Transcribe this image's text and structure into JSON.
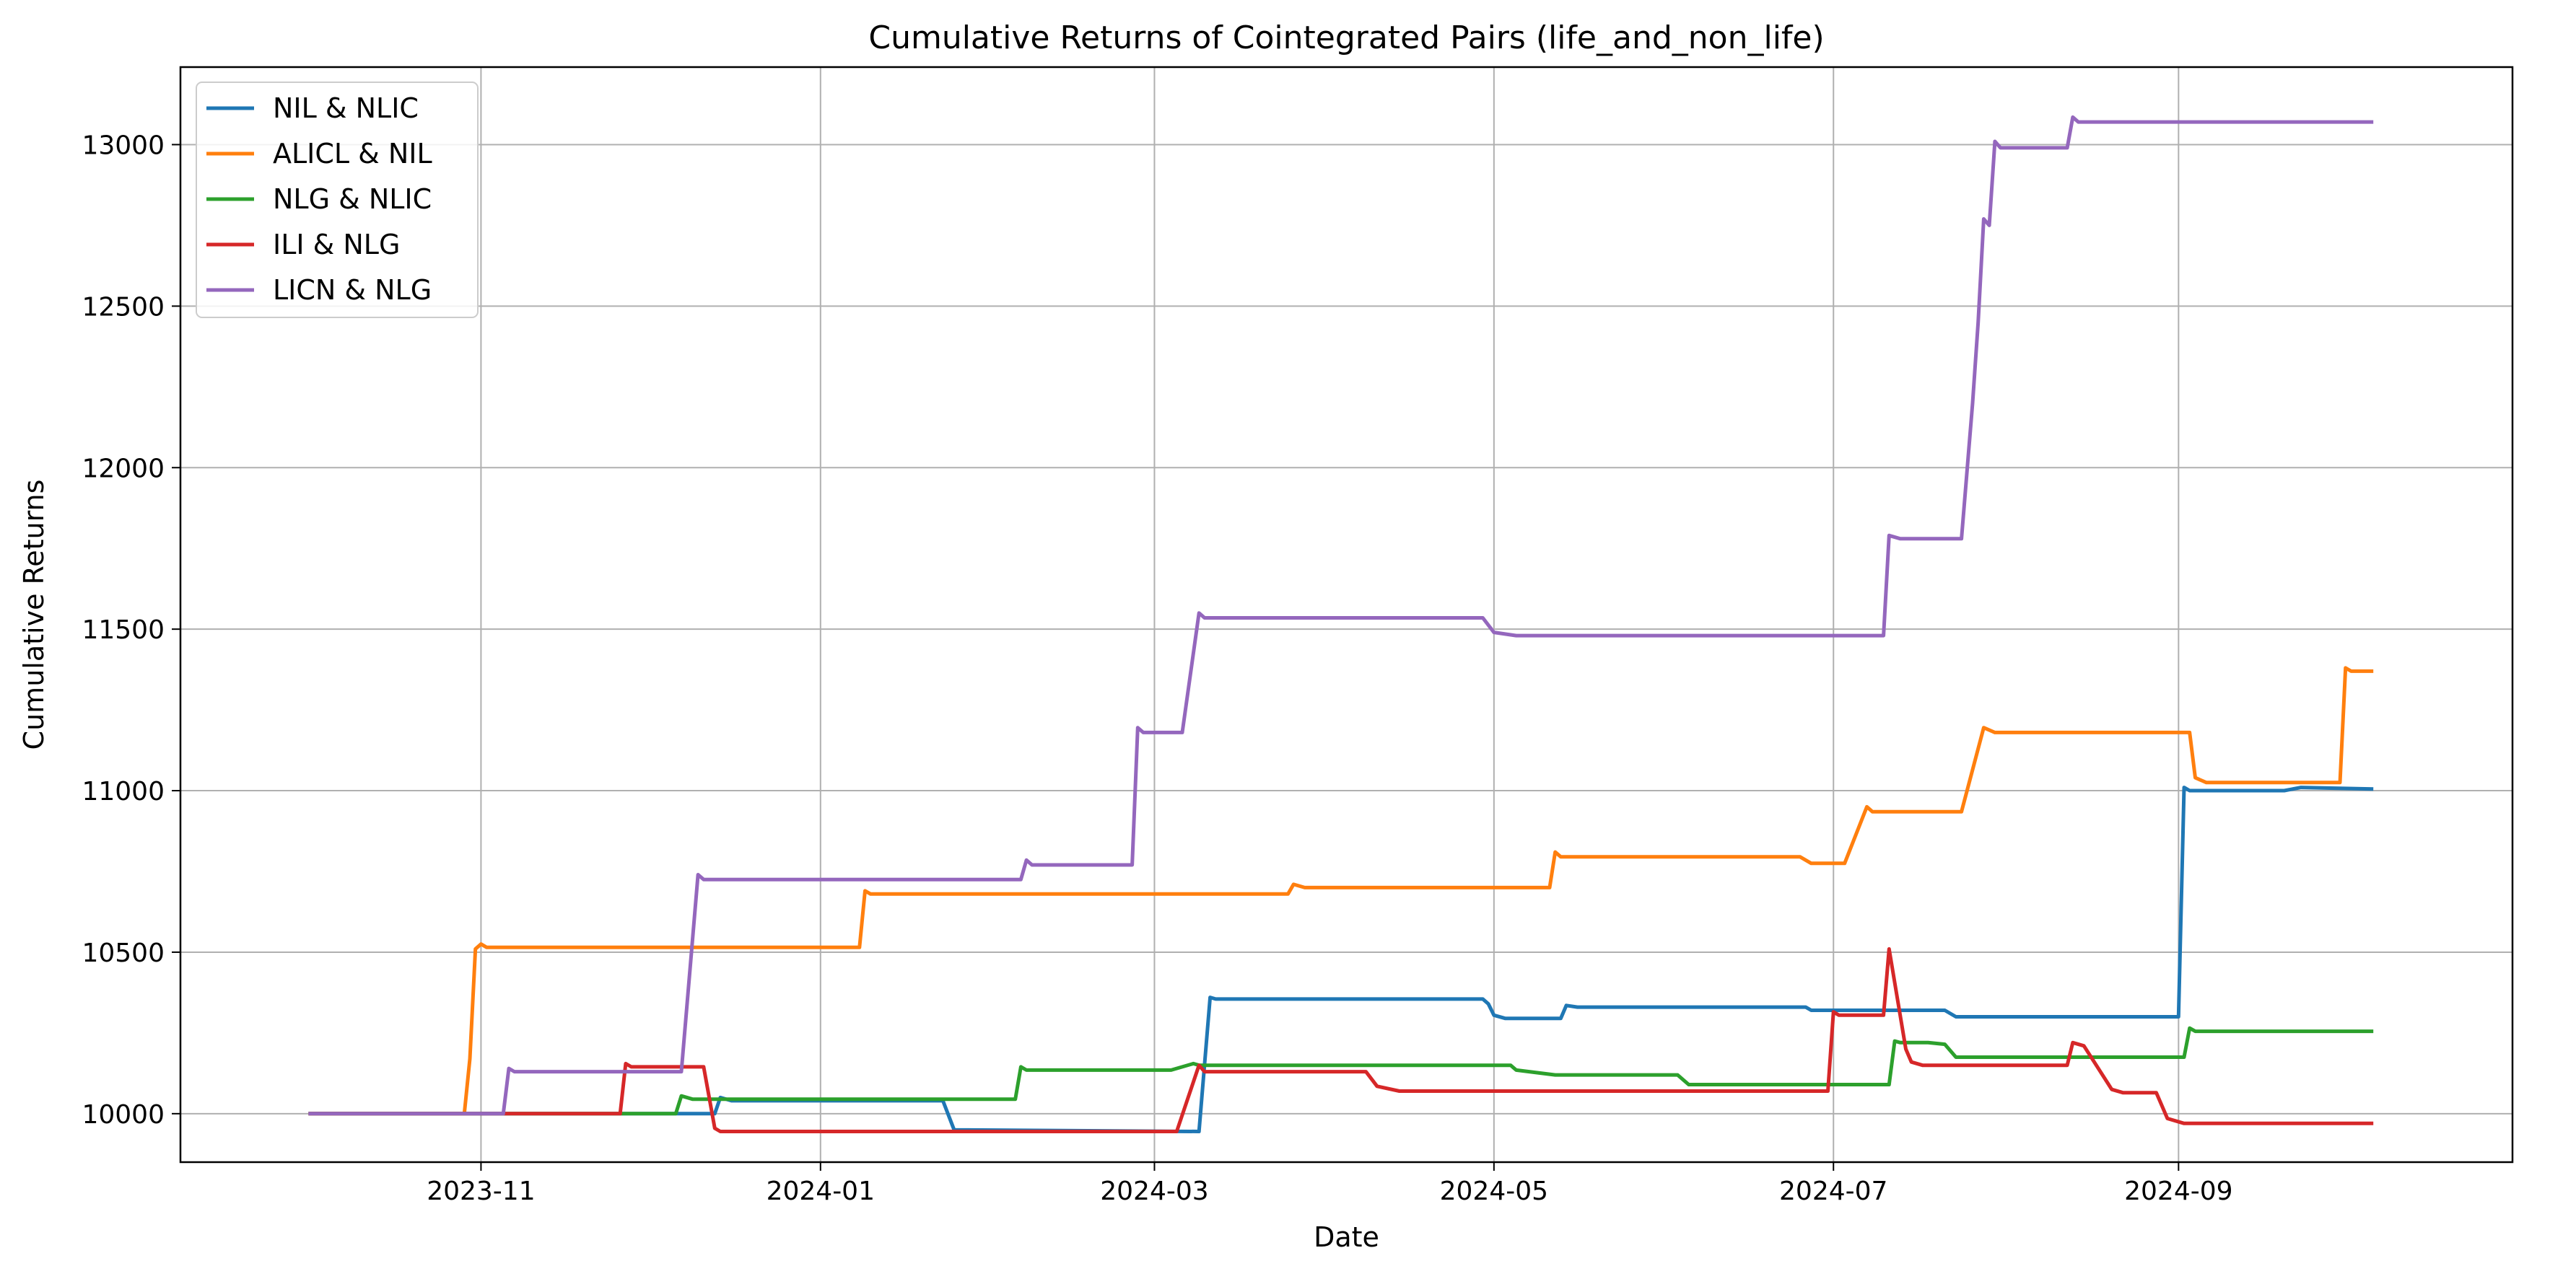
{
  "chart_data": {
    "type": "line",
    "title": "Cumulative Returns of Cointegrated Pairs (life_and_non_life)",
    "xlabel": "Date",
    "ylabel": "Cumulative Returns",
    "x_ticks": [
      "2023-11",
      "2024-01",
      "2024-03",
      "2024-05",
      "2024-07",
      "2024-09"
    ],
    "y_ticks": [
      10000,
      10500,
      11000,
      11500,
      12000,
      12500,
      13000
    ],
    "xlim": [
      "2023-09-08",
      "2024-10-31"
    ],
    "ylim": [
      9850,
      13240
    ],
    "grid": true,
    "legend_position": "upper-left",
    "series": [
      {
        "name": "NIL & NLIC",
        "color": "#1f77b4",
        "points": [
          [
            "2023-10-01",
            10000
          ],
          [
            "2023-12-13",
            10000
          ],
          [
            "2023-12-14",
            10050
          ],
          [
            "2023-12-16",
            10040
          ],
          [
            "2024-01-23",
            10040
          ],
          [
            "2024-01-25",
            9950
          ],
          [
            "2024-03-09",
            9945
          ],
          [
            "2024-03-11",
            10360
          ],
          [
            "2024-03-12",
            10355
          ],
          [
            "2024-04-29",
            10355
          ],
          [
            "2024-04-30",
            10340
          ],
          [
            "2024-05-01",
            10305
          ],
          [
            "2024-05-03",
            10295
          ],
          [
            "2024-05-13",
            10295
          ],
          [
            "2024-05-14",
            10335
          ],
          [
            "2024-05-16",
            10330
          ],
          [
            "2024-06-26",
            10330
          ],
          [
            "2024-06-27",
            10320
          ],
          [
            "2024-07-21",
            10320
          ],
          [
            "2024-07-23",
            10300
          ],
          [
            "2024-09-01",
            10300
          ],
          [
            "2024-09-02",
            11010
          ],
          [
            "2024-09-03",
            11000
          ],
          [
            "2024-09-20",
            11000
          ],
          [
            "2024-09-23",
            11010
          ],
          [
            "2024-10-06",
            11005
          ]
        ]
      },
      {
        "name": "ALICL & NIL",
        "color": "#ff7f0e",
        "points": [
          [
            "2023-10-01",
            10000
          ],
          [
            "2023-10-29",
            10000
          ],
          [
            "2023-10-30",
            10170
          ],
          [
            "2023-10-31",
            10510
          ],
          [
            "2023-11-01",
            10525
          ],
          [
            "2023-11-02",
            10515
          ],
          [
            "2024-01-08",
            10515
          ],
          [
            "2024-01-09",
            10690
          ],
          [
            "2024-01-10",
            10680
          ],
          [
            "2024-03-25",
            10680
          ],
          [
            "2024-03-26",
            10710
          ],
          [
            "2024-03-28",
            10700
          ],
          [
            "2024-05-11",
            10700
          ],
          [
            "2024-05-12",
            10810
          ],
          [
            "2024-05-13",
            10795
          ],
          [
            "2024-06-25",
            10795
          ],
          [
            "2024-06-27",
            10775
          ],
          [
            "2024-07-03",
            10775
          ],
          [
            "2024-07-07",
            10950
          ],
          [
            "2024-07-08",
            10935
          ],
          [
            "2024-07-24",
            10935
          ],
          [
            "2024-07-28",
            11195
          ],
          [
            "2024-07-30",
            11180
          ],
          [
            "2024-09-03",
            11180
          ],
          [
            "2024-09-04",
            11040
          ],
          [
            "2024-09-06",
            11025
          ],
          [
            "2024-09-30",
            11025
          ],
          [
            "2024-10-01",
            11380
          ],
          [
            "2024-10-02",
            11370
          ],
          [
            "2024-10-06",
            11370
          ]
        ]
      },
      {
        "name": "NLG & NLIC",
        "color": "#2ca02c",
        "points": [
          [
            "2023-10-01",
            10000
          ],
          [
            "2023-12-06",
            10000
          ],
          [
            "2023-12-07",
            10055
          ],
          [
            "2023-12-09",
            10045
          ],
          [
            "2024-02-05",
            10045
          ],
          [
            "2024-02-06",
            10145
          ],
          [
            "2024-02-07",
            10135
          ],
          [
            "2024-03-04",
            10135
          ],
          [
            "2024-03-08",
            10155
          ],
          [
            "2024-03-09",
            10150
          ],
          [
            "2024-05-04",
            10150
          ],
          [
            "2024-05-05",
            10135
          ],
          [
            "2024-05-12",
            10120
          ],
          [
            "2024-06-03",
            10120
          ],
          [
            "2024-06-05",
            10090
          ],
          [
            "2024-07-11",
            10090
          ],
          [
            "2024-07-12",
            10225
          ],
          [
            "2024-07-13",
            10220
          ],
          [
            "2024-07-18",
            10220
          ],
          [
            "2024-07-21",
            10215
          ],
          [
            "2024-07-23",
            10175
          ],
          [
            "2024-09-02",
            10175
          ],
          [
            "2024-09-03",
            10265
          ],
          [
            "2024-09-04",
            10255
          ],
          [
            "2024-10-06",
            10255
          ]
        ]
      },
      {
        "name": "ILI & NLG",
        "color": "#d62728",
        "points": [
          [
            "2023-10-01",
            10000
          ],
          [
            "2023-11-26",
            10000
          ],
          [
            "2023-11-27",
            10155
          ],
          [
            "2023-11-28",
            10145
          ],
          [
            "2023-12-11",
            10145
          ],
          [
            "2023-12-13",
            9955
          ],
          [
            "2023-12-14",
            9945
          ],
          [
            "2024-03-05",
            9945
          ],
          [
            "2024-03-09",
            10150
          ],
          [
            "2024-03-10",
            10130
          ],
          [
            "2024-04-08",
            10130
          ],
          [
            "2024-04-10",
            10085
          ],
          [
            "2024-04-14",
            10070
          ],
          [
            "2024-06-30",
            10070
          ],
          [
            "2024-07-01",
            10315
          ],
          [
            "2024-07-02",
            10305
          ],
          [
            "2024-07-10",
            10305
          ],
          [
            "2024-07-11",
            10510
          ],
          [
            "2024-07-14",
            10200
          ],
          [
            "2024-07-15",
            10160
          ],
          [
            "2024-07-17",
            10150
          ],
          [
            "2024-08-12",
            10150
          ],
          [
            "2024-08-13",
            10220
          ],
          [
            "2024-08-15",
            10210
          ],
          [
            "2024-08-20",
            10075
          ],
          [
            "2024-08-22",
            10065
          ],
          [
            "2024-08-28",
            10065
          ],
          [
            "2024-08-30",
            9985
          ],
          [
            "2024-09-02",
            9970
          ],
          [
            "2024-10-06",
            9970
          ]
        ]
      },
      {
        "name": "LICN & NLG",
        "color": "#9467bd",
        "points": [
          [
            "2023-10-01",
            10000
          ],
          [
            "2023-11-05",
            10000
          ],
          [
            "2023-11-06",
            10140
          ],
          [
            "2023-11-07",
            10130
          ],
          [
            "2023-12-07",
            10130
          ],
          [
            "2023-12-10",
            10740
          ],
          [
            "2023-12-11",
            10725
          ],
          [
            "2024-02-06",
            10725
          ],
          [
            "2024-02-07",
            10785
          ],
          [
            "2024-02-08",
            10770
          ],
          [
            "2024-02-26",
            10770
          ],
          [
            "2024-02-27",
            11195
          ],
          [
            "2024-02-28",
            11180
          ],
          [
            "2024-03-06",
            11180
          ],
          [
            "2024-03-09",
            11550
          ],
          [
            "2024-03-10",
            11535
          ],
          [
            "2024-04-29",
            11535
          ],
          [
            "2024-05-01",
            11490
          ],
          [
            "2024-05-05",
            11480
          ],
          [
            "2024-07-10",
            11480
          ],
          [
            "2024-07-11",
            11790
          ],
          [
            "2024-07-13",
            11780
          ],
          [
            "2024-07-24",
            11780
          ],
          [
            "2024-07-26",
            12200
          ],
          [
            "2024-07-27",
            12450
          ],
          [
            "2024-07-28",
            12770
          ],
          [
            "2024-07-29",
            12750
          ],
          [
            "2024-07-30",
            13010
          ],
          [
            "2024-07-31",
            12990
          ],
          [
            "2024-08-12",
            12990
          ],
          [
            "2024-08-13",
            13085
          ],
          [
            "2024-08-14",
            13070
          ],
          [
            "2024-10-06",
            13070
          ]
        ]
      }
    ]
  }
}
